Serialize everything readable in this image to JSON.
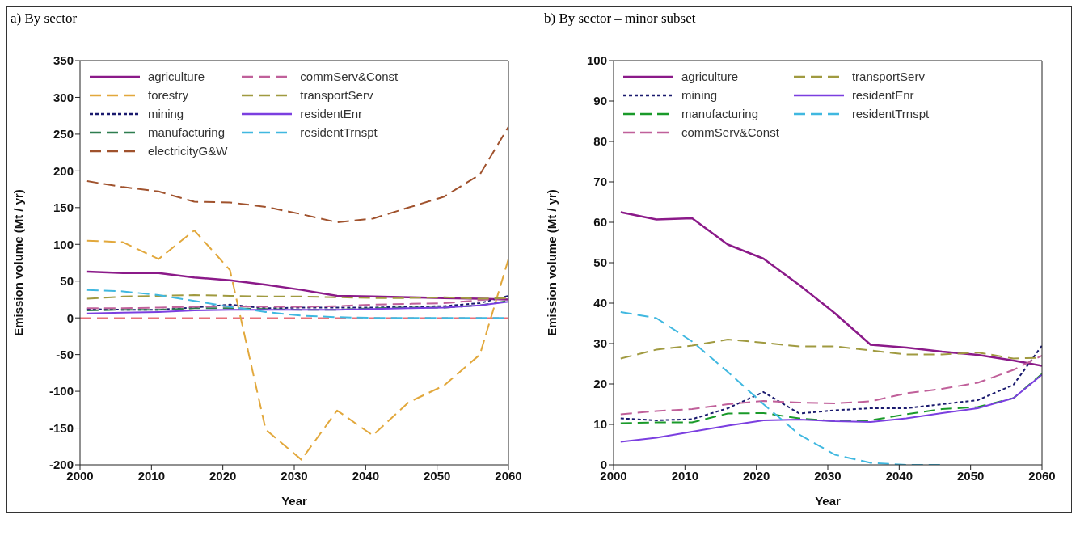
{
  "chart_data": [
    {
      "type": "line",
      "title": "a) By sector",
      "xlabel": "Year",
      "ylabel": "Emission volume (Mt / yr)",
      "x": [
        2001,
        2006,
        2011,
        2016,
        2021,
        2026,
        2031,
        2036,
        2041,
        2046,
        2051,
        2056,
        2060
      ],
      "xlim": [
        2000,
        2060
      ],
      "xticks": [
        2000,
        2010,
        2020,
        2030,
        2040,
        2050,
        2060
      ],
      "ylim": [
        -200,
        350
      ],
      "yticks": [
        -200,
        -150,
        -100,
        -50,
        0,
        50,
        100,
        150,
        200,
        250,
        300,
        350
      ],
      "legend": "top left",
      "marker": "none",
      "ref_lines": [
        {
          "axis": "y",
          "value": 0,
          "color": "#e8707a",
          "line_style": "dashed"
        }
      ],
      "series": [
        {
          "name": "agriculture",
          "color": "#8b1a89",
          "line_style": "solid",
          "values": [
            63,
            61,
            61,
            55,
            51,
            45,
            38,
            30,
            29,
            28,
            27,
            26,
            25
          ]
        },
        {
          "name": "forestry",
          "color": "#e2a83c",
          "line_style": "dashed",
          "values": [
            105,
            103,
            80,
            119,
            65,
            -152,
            -193,
            -126,
            -160,
            -115,
            -92,
            -50,
            80
          ]
        },
        {
          "name": "mining",
          "color": "#1a1a6e",
          "line_style": "dotted",
          "values": [
            12,
            11,
            11,
            14,
            18,
            13,
            14,
            14,
            14,
            15,
            16,
            20,
            30
          ]
        },
        {
          "name": "manufacturing",
          "color": "#2e7d4f",
          "line_style": "dashed",
          "values": [
            10,
            11,
            11,
            13,
            13,
            12,
            11,
            11,
            13,
            14,
            14,
            17,
            23
          ]
        },
        {
          "name": "electricityG&W",
          "color": "#a0522d",
          "line_style": "dashed",
          "values": [
            186,
            178,
            172,
            158,
            157,
            151,
            141,
            130,
            135,
            150,
            165,
            195,
            260
          ]
        },
        {
          "name": "commServ&Const",
          "color": "#c0609a",
          "line_style": "dashed",
          "values": [
            13,
            13,
            14,
            15,
            16,
            15,
            15,
            16,
            18,
            19,
            20,
            24,
            27
          ]
        },
        {
          "name": "transportServ",
          "color": "#a09a40",
          "line_style": "dashed",
          "values": [
            26,
            29,
            30,
            31,
            30,
            29,
            29,
            28,
            27,
            27,
            28,
            26,
            27
          ]
        },
        {
          "name": "residentEnr",
          "color": "#7b3fe0",
          "line_style": "solid",
          "values": [
            6,
            7,
            8,
            10,
            11,
            11,
            11,
            11,
            12,
            13,
            14,
            17,
            22
          ]
        },
        {
          "name": "residentTrnspt",
          "color": "#40b8e0",
          "line_style": "dashed",
          "values": [
            38,
            36,
            31,
            23,
            15,
            8,
            3,
            1,
            0,
            0,
            0,
            0,
            0
          ]
        }
      ]
    },
    {
      "type": "line",
      "title": "b) By sector – minor subset",
      "xlabel": "Year",
      "ylabel": "Emission volume (Mt / yr)",
      "x": [
        2001,
        2006,
        2011,
        2016,
        2021,
        2026,
        2031,
        2036,
        2041,
        2046,
        2051,
        2056,
        2060
      ],
      "xlim": [
        2000,
        2060
      ],
      "xticks": [
        2000,
        2010,
        2020,
        2030,
        2040,
        2050,
        2060
      ],
      "ylim": [
        0,
        100
      ],
      "yticks": [
        0,
        10,
        20,
        30,
        40,
        50,
        60,
        70,
        80,
        90,
        100
      ],
      "legend": "top left",
      "marker": "none",
      "series": [
        {
          "name": "agriculture",
          "color": "#8b1a89",
          "line_style": "solid",
          "values": [
            62.5,
            60.7,
            61,
            54.5,
            51,
            44.5,
            37.5,
            29.7,
            29,
            28,
            27.2,
            25.8,
            24.5
          ]
        },
        {
          "name": "mining",
          "color": "#1a1a6e",
          "line_style": "dotted",
          "values": [
            11.5,
            11,
            11.3,
            14,
            18,
            12.7,
            13.5,
            14,
            14,
            15,
            16,
            19.8,
            29.5
          ]
        },
        {
          "name": "manufacturing",
          "color": "#1a9a2a",
          "line_style": "dashed",
          "values": [
            10.3,
            10.5,
            10.5,
            12.7,
            12.8,
            11.5,
            10.8,
            11,
            12.5,
            13.8,
            14.3,
            16.5,
            22.5
          ]
        },
        {
          "name": "commServ&Const",
          "color": "#c0609a",
          "line_style": "dashed",
          "values": [
            12.5,
            13.3,
            13.8,
            15,
            15.8,
            15.4,
            15.2,
            15.7,
            17.7,
            18.8,
            20.3,
            23.5,
            27
          ]
        },
        {
          "name": "transportServ",
          "color": "#a09a40",
          "line_style": "dashed",
          "values": [
            26.3,
            28.5,
            29.5,
            31,
            30.2,
            29.3,
            29.3,
            28.3,
            27.3,
            27.3,
            27.8,
            26.3,
            26.5
          ]
        },
        {
          "name": "residentEnr",
          "color": "#7b3fe0",
          "line_style": "solid",
          "values": [
            5.7,
            6.7,
            8.2,
            9.7,
            11,
            11.2,
            10.8,
            10.6,
            11.5,
            12.8,
            14,
            16.5,
            22.3
          ]
        },
        {
          "name": "residentTrnspt",
          "color": "#40b8e0",
          "line_style": "dashed",
          "values": [
            37.8,
            36.3,
            30.5,
            23,
            15,
            7.5,
            2.5,
            0.5,
            0,
            0,
            null,
            null,
            null
          ]
        }
      ]
    }
  ]
}
